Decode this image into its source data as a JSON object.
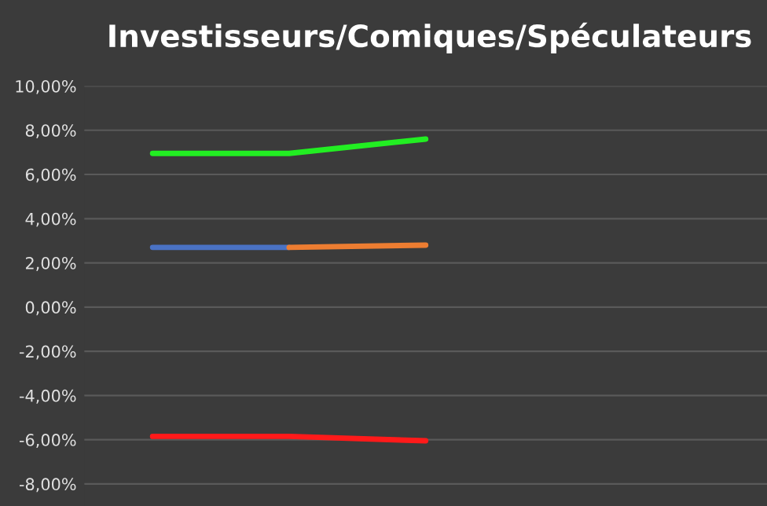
{
  "chart_data": {
    "type": "line",
    "title": "Investisseurs/Comiques/Spéculateurs",
    "categories": [
      null,
      null,
      null,
      null,
      null
    ],
    "series": [
      {
        "color": "#22ee22",
        "values": [
          6.95,
          6.95,
          7.6,
          null,
          null
        ]
      },
      {
        "color": "#4a72c4",
        "values": [
          2.7,
          2.7,
          null,
          null,
          null
        ]
      },
      {
        "color": "#ed7d31",
        "values": [
          null,
          2.7,
          2.8,
          null,
          null
        ]
      },
      {
        "color": "#ff1a1a",
        "values": [
          -5.85,
          -5.85,
          -6.05,
          null,
          null
        ]
      }
    ],
    "ylim": [
      -9,
      10
    ],
    "yticks": [
      {
        "value": -8,
        "label": "-8,00%"
      },
      {
        "value": -6,
        "label": "-6,00%"
      },
      {
        "value": -4,
        "label": "-4,00%"
      },
      {
        "value": -2,
        "label": "-2,00%"
      },
      {
        "value": 0,
        "label": "0,00%"
      },
      {
        "value": 2,
        "label": "2,00%"
      },
      {
        "value": 4,
        "label": "4,00%"
      },
      {
        "value": 6,
        "label": "6,00%"
      },
      {
        "value": 8,
        "label": "8,00%"
      },
      {
        "value": 10,
        "label": "10,00%"
      }
    ],
    "grid": "y",
    "marker": "none",
    "line_style": "solid"
  }
}
